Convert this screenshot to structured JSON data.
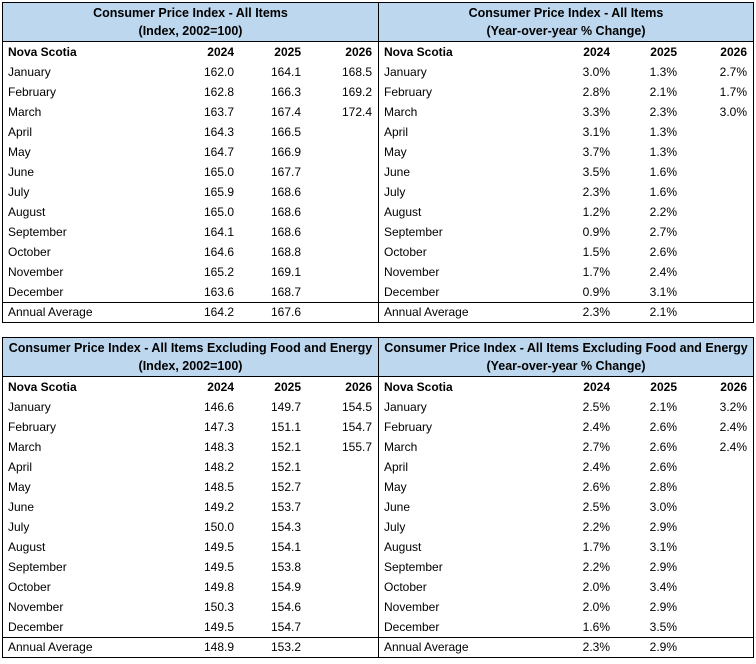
{
  "colors": {
    "header_bg": "#BDD7EE",
    "border": "#000000",
    "text": "#000000"
  },
  "tables": [
    {
      "title": "Consumer Price Index - All Items",
      "subtitle": "(Index, 2002=100)",
      "region_label": "Nova Scotia",
      "years": [
        "2024",
        "2025",
        "2026"
      ],
      "rows": [
        {
          "label": "January",
          "values": [
            "162.0",
            "164.1",
            "168.5"
          ]
        },
        {
          "label": "February",
          "values": [
            "162.8",
            "166.3",
            "169.2"
          ]
        },
        {
          "label": "March",
          "values": [
            "163.7",
            "167.4",
            "172.4"
          ]
        },
        {
          "label": "April",
          "values": [
            "164.3",
            "166.5",
            ""
          ]
        },
        {
          "label": "May",
          "values": [
            "164.7",
            "166.9",
            ""
          ]
        },
        {
          "label": "June",
          "values": [
            "165.0",
            "167.7",
            ""
          ]
        },
        {
          "label": "July",
          "values": [
            "165.9",
            "168.6",
            ""
          ]
        },
        {
          "label": "August",
          "values": [
            "165.0",
            "168.6",
            ""
          ]
        },
        {
          "label": "September",
          "values": [
            "164.1",
            "168.6",
            ""
          ]
        },
        {
          "label": "October",
          "values": [
            "164.6",
            "168.8",
            ""
          ]
        },
        {
          "label": "November",
          "values": [
            "165.2",
            "169.1",
            ""
          ]
        },
        {
          "label": "December",
          "values": [
            "163.6",
            "168.7",
            ""
          ]
        }
      ],
      "footer": {
        "label": "Annual Average",
        "values": [
          "164.2",
          "167.6",
          ""
        ]
      }
    },
    {
      "title": "Consumer Price Index - All Items",
      "subtitle": "(Year-over-year % Change)",
      "region_label": "Nova Scotia",
      "years": [
        "2024",
        "2025",
        "2026"
      ],
      "rows": [
        {
          "label": "January",
          "values": [
            "3.0%",
            "1.3%",
            "2.7%"
          ]
        },
        {
          "label": "February",
          "values": [
            "2.8%",
            "2.1%",
            "1.7%"
          ]
        },
        {
          "label": "March",
          "values": [
            "3.3%",
            "2.3%",
            "3.0%"
          ]
        },
        {
          "label": "April",
          "values": [
            "3.1%",
            "1.3%",
            ""
          ]
        },
        {
          "label": "May",
          "values": [
            "3.7%",
            "1.3%",
            ""
          ]
        },
        {
          "label": "June",
          "values": [
            "3.5%",
            "1.6%",
            ""
          ]
        },
        {
          "label": "July",
          "values": [
            "2.3%",
            "1.6%",
            ""
          ]
        },
        {
          "label": "August",
          "values": [
            "1.2%",
            "2.2%",
            ""
          ]
        },
        {
          "label": "September",
          "values": [
            "0.9%",
            "2.7%",
            ""
          ]
        },
        {
          "label": "October",
          "values": [
            "1.5%",
            "2.6%",
            ""
          ]
        },
        {
          "label": "November",
          "values": [
            "1.7%",
            "2.4%",
            ""
          ]
        },
        {
          "label": "December",
          "values": [
            "0.9%",
            "3.1%",
            ""
          ]
        }
      ],
      "footer": {
        "label": "Annual Average",
        "values": [
          "2.3%",
          "2.1%",
          ""
        ]
      }
    },
    {
      "title": "Consumer Price Index - All Items Excluding Food and Energy",
      "subtitle": "(Index, 2002=100)",
      "region_label": "Nova Scotia",
      "years": [
        "2024",
        "2025",
        "2026"
      ],
      "rows": [
        {
          "label": "January",
          "values": [
            "146.6",
            "149.7",
            "154.5"
          ]
        },
        {
          "label": "February",
          "values": [
            "147.3",
            "151.1",
            "154.7"
          ]
        },
        {
          "label": "March",
          "values": [
            "148.3",
            "152.1",
            "155.7"
          ]
        },
        {
          "label": "April",
          "values": [
            "148.2",
            "152.1",
            ""
          ]
        },
        {
          "label": "May",
          "values": [
            "148.5",
            "152.7",
            ""
          ]
        },
        {
          "label": "June",
          "values": [
            "149.2",
            "153.7",
            ""
          ]
        },
        {
          "label": "July",
          "values": [
            "150.0",
            "154.3",
            ""
          ]
        },
        {
          "label": "August",
          "values": [
            "149.5",
            "154.1",
            ""
          ]
        },
        {
          "label": "September",
          "values": [
            "149.5",
            "153.8",
            ""
          ]
        },
        {
          "label": "October",
          "values": [
            "149.8",
            "154.9",
            ""
          ]
        },
        {
          "label": "November",
          "values": [
            "150.3",
            "154.6",
            ""
          ]
        },
        {
          "label": "December",
          "values": [
            "149.5",
            "154.7",
            ""
          ]
        }
      ],
      "footer": {
        "label": "Annual Average",
        "values": [
          "148.9",
          "153.2",
          ""
        ]
      }
    },
    {
      "title": "Consumer Price Index - All Items Excluding Food and Energy",
      "subtitle": "(Year-over-year % Change)",
      "region_label": "Nova Scotia",
      "years": [
        "2024",
        "2025",
        "2026"
      ],
      "rows": [
        {
          "label": "January",
          "values": [
            "2.5%",
            "2.1%",
            "3.2%"
          ]
        },
        {
          "label": "February",
          "values": [
            "2.4%",
            "2.6%",
            "2.4%"
          ]
        },
        {
          "label": "March",
          "values": [
            "2.7%",
            "2.6%",
            "2.4%"
          ]
        },
        {
          "label": "April",
          "values": [
            "2.4%",
            "2.6%",
            ""
          ]
        },
        {
          "label": "May",
          "values": [
            "2.6%",
            "2.8%",
            ""
          ]
        },
        {
          "label": "June",
          "values": [
            "2.5%",
            "3.0%",
            ""
          ]
        },
        {
          "label": "July",
          "values": [
            "2.2%",
            "2.9%",
            ""
          ]
        },
        {
          "label": "August",
          "values": [
            "1.7%",
            "3.1%",
            ""
          ]
        },
        {
          "label": "September",
          "values": [
            "2.2%",
            "2.9%",
            ""
          ]
        },
        {
          "label": "October",
          "values": [
            "2.0%",
            "3.4%",
            ""
          ]
        },
        {
          "label": "November",
          "values": [
            "2.0%",
            "2.9%",
            ""
          ]
        },
        {
          "label": "December",
          "values": [
            "1.6%",
            "3.5%",
            ""
          ]
        }
      ],
      "footer": {
        "label": "Annual Average",
        "values": [
          "2.3%",
          "2.9%",
          ""
        ]
      }
    }
  ]
}
